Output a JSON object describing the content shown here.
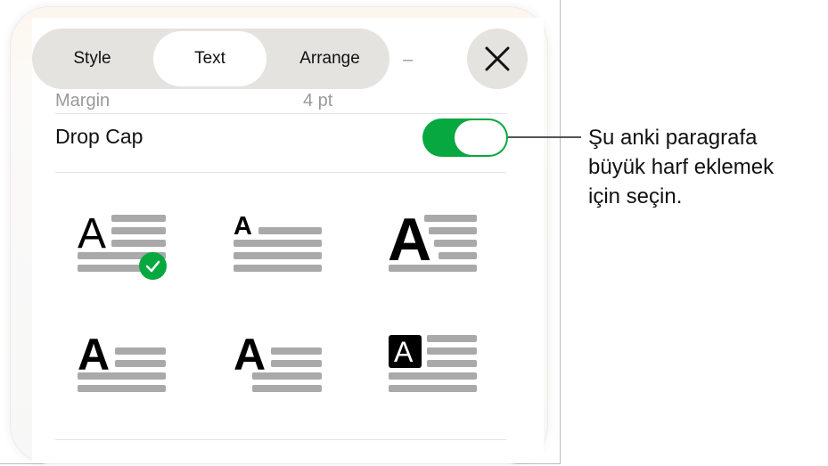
{
  "tabs": [
    {
      "label": "Style"
    },
    {
      "label": "Text",
      "active": true
    },
    {
      "label": "Arrange"
    }
  ],
  "background_blurred": {
    "margin_label": "Margin",
    "margin_value": "4 pt",
    "minus": "–",
    "plus": "+"
  },
  "close_icon": "close-x-icon",
  "drop_cap": {
    "label": "Drop Cap",
    "enabled": true,
    "toggle_color": "#07a840"
  },
  "styles": [
    {
      "name": "thin-3-line",
      "selected": true
    },
    {
      "name": "small-bold-1-line",
      "selected": false
    },
    {
      "name": "large-bold-stepped",
      "selected": false
    },
    {
      "name": "raised-bold",
      "selected": false
    },
    {
      "name": "raised-bold-hanging",
      "selected": false
    },
    {
      "name": "boxed-inverted",
      "selected": false
    }
  ],
  "callout": {
    "lines": [
      "Şu anki paragrafa",
      "büyük harf eklemek",
      "için seçin."
    ]
  }
}
